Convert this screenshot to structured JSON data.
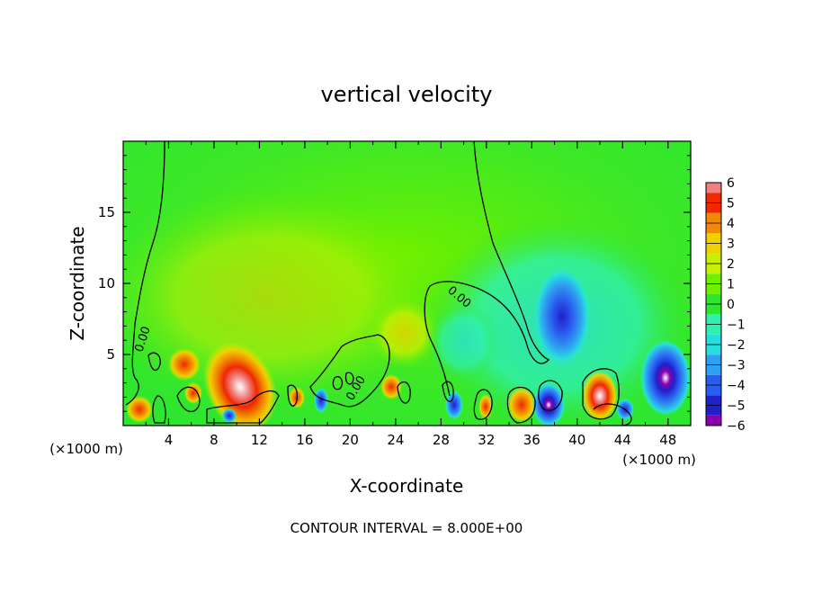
{
  "chart_data": {
    "type": "heatmap",
    "title": "vertical velocity",
    "xlabel": "X-coordinate",
    "ylabel": "Z-coordinate",
    "x_unit": "(×1000 m)",
    "x_unit_right": "(×1000 m)",
    "xlim": [
      0,
      50
    ],
    "ylim": [
      0,
      20
    ],
    "x_ticks": [
      4,
      8,
      12,
      16,
      20,
      24,
      28,
      32,
      36,
      40,
      44,
      48
    ],
    "y_ticks": [
      5,
      10,
      15
    ],
    "colorbar": {
      "levels": [
        -6,
        -5,
        -4,
        -3,
        -2,
        -1,
        0,
        1,
        2,
        3,
        4,
        5,
        6
      ],
      "colors": [
        "#8a00b0",
        "#2020c8",
        "#2a5cf0",
        "#2f9ff0",
        "#27dede",
        "#2ff0b0",
        "#2ee62e",
        "#6ef000",
        "#c8f000",
        "#f0d000",
        "#f08a00",
        "#f02800",
        "#f08080"
      ]
    },
    "contour_label": "0.00",
    "footer": "CONTOUR INTERVAL = 8.000E+00"
  }
}
